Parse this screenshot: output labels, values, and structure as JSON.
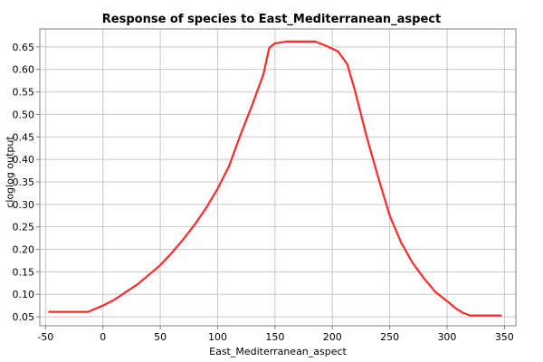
{
  "chart_data": {
    "type": "line",
    "title": "Response of species to East_Mediterranean_aspect",
    "xlabel": "East_Mediterranean_aspect",
    "ylabel": "cloglog output",
    "xlim": [
      -55,
      360
    ],
    "ylim": [
      0.03,
      0.69
    ],
    "x_ticks": [
      -50,
      0,
      50,
      100,
      150,
      200,
      250,
      300,
      350
    ],
    "y_ticks": [
      0.05,
      0.1,
      0.15,
      0.2,
      0.25,
      0.3,
      0.35,
      0.4,
      0.45,
      0.5,
      0.55,
      0.6,
      0.65
    ],
    "grid": true,
    "series": [
      {
        "color": "#ff2a2a",
        "x": [
          -47,
          -13,
          0,
          10,
          20,
          30,
          40,
          50,
          60,
          70,
          80,
          90,
          100,
          110,
          120,
          130,
          140,
          145,
          150,
          160,
          170,
          180,
          185,
          195,
          205,
          213,
          220,
          230,
          240,
          250,
          260,
          270,
          280,
          290,
          300,
          307,
          313,
          320,
          347
        ],
        "y": [
          0.061,
          0.061,
          0.075,
          0.088,
          0.105,
          0.122,
          0.143,
          0.165,
          0.192,
          0.222,
          0.255,
          0.292,
          0.335,
          0.385,
          0.455,
          0.52,
          0.59,
          0.648,
          0.658,
          0.662,
          0.662,
          0.662,
          0.662,
          0.652,
          0.64,
          0.612,
          0.55,
          0.45,
          0.36,
          0.275,
          0.215,
          0.17,
          0.135,
          0.105,
          0.085,
          0.07,
          0.06,
          0.053,
          0.053
        ]
      }
    ]
  }
}
